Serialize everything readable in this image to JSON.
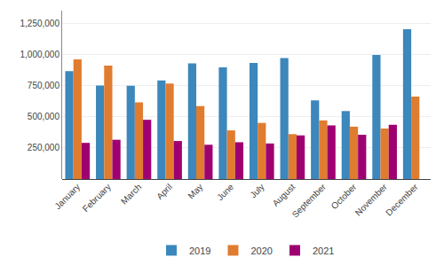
{
  "chart_data": {
    "type": "bar",
    "categories": [
      "January",
      "February",
      "March",
      "April",
      "May",
      "June",
      "July",
      "August",
      "September",
      "October",
      "November",
      "December"
    ],
    "series": [
      {
        "name": "2019",
        "color": "#3c87bc",
        "values": [
          865000,
          750000,
          748000,
          790000,
          928000,
          895000,
          930000,
          970000,
          630000,
          545000,
          995000,
          1200000
        ]
      },
      {
        "name": "2020",
        "color": "#e07c30",
        "values": [
          960000,
          910000,
          615000,
          765000,
          585000,
          390000,
          450000,
          360000,
          470000,
          420000,
          405000,
          660000
        ]
      },
      {
        "name": "2021",
        "color": "#9e0071",
        "values": [
          290000,
          315000,
          475000,
          305000,
          275000,
          295000,
          285000,
          350000,
          430000,
          355000,
          435000,
          0
        ]
      }
    ],
    "ylim": [
      0,
      1350000
    ],
    "yticks": [
      {
        "value": 250000,
        "label": "250,000"
      },
      {
        "value": 500000,
        "label": "500,000"
      },
      {
        "value": 750000,
        "label": "750,000"
      },
      {
        "value": 1000000,
        "label": "1,000,000"
      },
      {
        "value": 1250000,
        "label": "1,250,000"
      }
    ],
    "grid": true,
    "legend": "bottom"
  }
}
